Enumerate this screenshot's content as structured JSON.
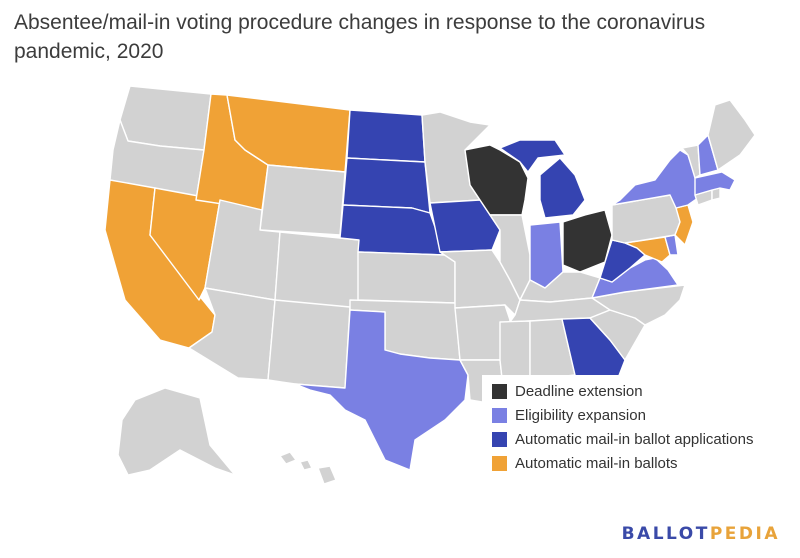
{
  "title": "Absentee/mail-in voting procedure changes in response to the coronavirus pandemic, 2020",
  "colors": {
    "Deadline extension": "#333333",
    "Eligibility expansion": "#7a80e3",
    "Automatic mail-in ballot applications": "#3544b1",
    "Automatic mail-in ballots": "#f0a236",
    "No change": "#d2d2d2"
  },
  "legend": [
    {
      "label": "Deadline extension",
      "color": "#333333"
    },
    {
      "label": "Eligibility expansion",
      "color": "#7a80e3"
    },
    {
      "label": "Automatic mail-in ballot applications",
      "color": "#3544b1"
    },
    {
      "label": "Automatic mail-in ballots",
      "color": "#f0a236"
    }
  ],
  "states": {
    "WA": "No change",
    "OR": "No change",
    "CA": "Automatic mail-in ballots",
    "NV": "Automatic mail-in ballots",
    "ID": "Automatic mail-in ballots",
    "MT": "Automatic mail-in ballots",
    "WY": "No change",
    "UT": "No change",
    "AZ": "No change",
    "CO": "No change",
    "NM": "No change",
    "ND": "Automatic mail-in ballot applications",
    "SD": "Automatic mail-in ballot applications",
    "NE": "Automatic mail-in ballot applications",
    "KS": "No change",
    "OK": "No change",
    "TX": "Eligibility expansion",
    "MN": "No change",
    "IA": "Automatic mail-in ballot applications",
    "MO": "No change",
    "AR": "No change",
    "LA": "No change",
    "WI": "Deadline extension",
    "IL": "No change",
    "MI": "Automatic mail-in ballot applications",
    "IN": "Eligibility expansion",
    "OH": "Deadline extension",
    "KY": "No change",
    "TN": "No change",
    "MS": "No change",
    "AL": "No change",
    "GA": "Automatic mail-in ballot applications",
    "FL": "No change",
    "SC": "No change",
    "NC": "No change",
    "VA": "Eligibility expansion",
    "WV": "Automatic mail-in ballot applications",
    "MD": "Automatic mail-in ballots",
    "DE": "Eligibility expansion",
    "PA": "No change",
    "NJ": "Automatic mail-in ballots",
    "NY": "Eligibility expansion",
    "CT": "No change",
    "RI": "No change",
    "MA": "Eligibility expansion",
    "VT": "No change",
    "NH": "Eligibility expansion",
    "ME": "No change",
    "AK": "No change",
    "HI": "No change"
  },
  "brand": {
    "part1": "BALLOT",
    "part2": "PEDIA"
  }
}
